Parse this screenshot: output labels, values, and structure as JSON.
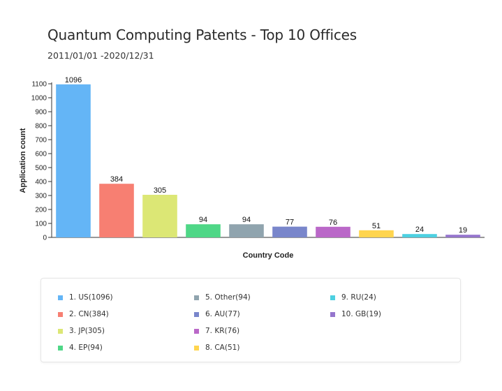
{
  "chart_data": {
    "type": "bar",
    "title": "Quantum Computing Patents - Top 10 Offices",
    "subtitle": "2011/01/01 -2020/12/31",
    "xlabel": "Country Code",
    "ylabel": "Application count",
    "ylim": [
      0,
      1100
    ],
    "yticks": [
      0,
      100,
      200,
      300,
      400,
      500,
      600,
      700,
      800,
      900,
      1000,
      1100
    ],
    "grid": false,
    "legend_position": "bottom",
    "categories": [
      "US",
      "CN",
      "JP",
      "EP",
      "Other",
      "AU",
      "KR",
      "CA",
      "RU",
      "GB"
    ],
    "values": [
      1096,
      384,
      305,
      94,
      94,
      77,
      76,
      51,
      24,
      19
    ],
    "colors": [
      "#64b5f6",
      "#f77f72",
      "#dce775",
      "#4fd787",
      "#90a4ae",
      "#7986cb",
      "#ba68c8",
      "#ffd54f",
      "#4dd0e1",
      "#9575cd"
    ],
    "legend": [
      "1. US(1096)",
      "2. CN(384)",
      "3. JP(305)",
      "4. EP(94)",
      "5. Other(94)",
      "6. AU(77)",
      "7. KR(76)",
      "8. CA(51)",
      "9. RU(24)",
      "10. GB(19)"
    ]
  }
}
